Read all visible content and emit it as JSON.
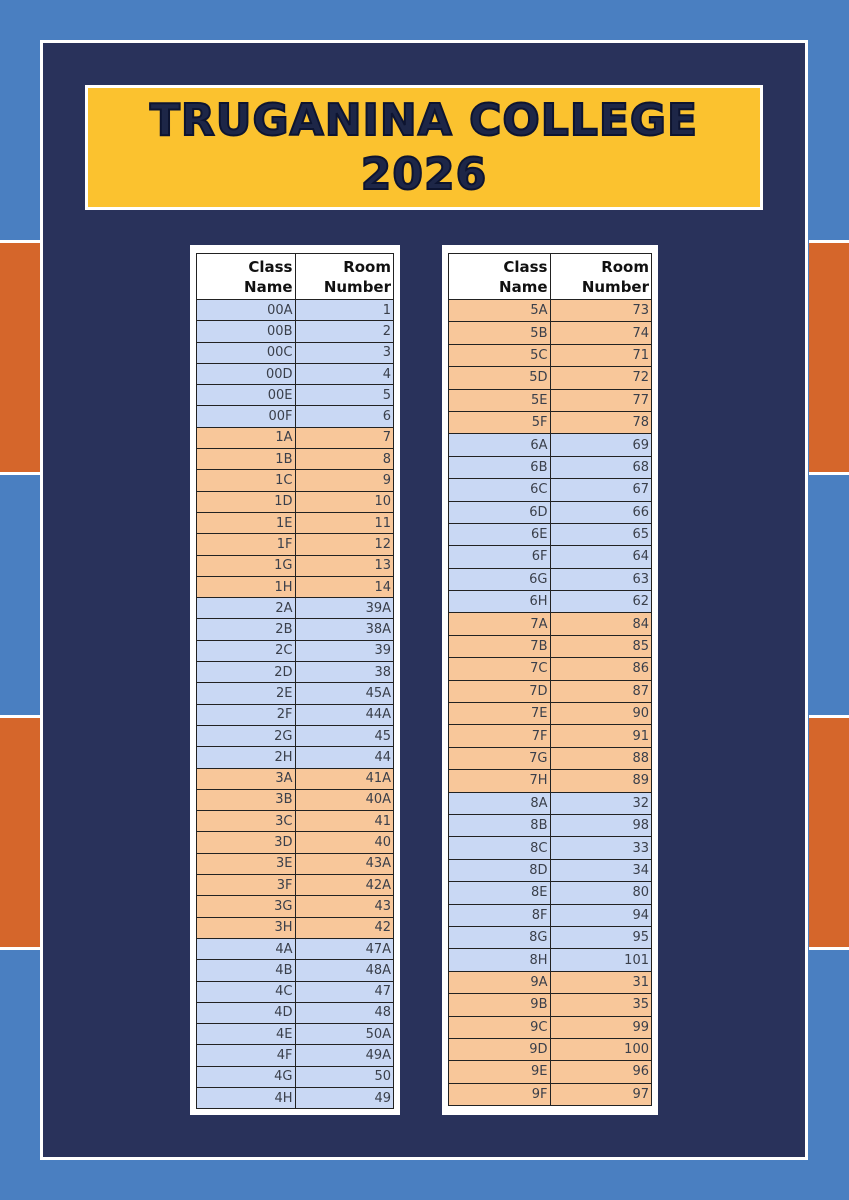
{
  "title": {
    "line1": "TRUGANINA COLLEGE",
    "line2": "2026"
  },
  "colors": {
    "background_blue": "#4a7fc1",
    "band_orange": "#d5662b",
    "frame_navy": "#29325b",
    "title_yellow": "#fbc22f",
    "row_blue": "#c9d8f4",
    "row_orange": "#f8c79a"
  },
  "tables": [
    {
      "headers": {
        "class": "Class Name",
        "room": "Room Number"
      },
      "rows": [
        [
          "00A",
          "1",
          "blue"
        ],
        [
          "00B",
          "2",
          "blue"
        ],
        [
          "00C",
          "3",
          "blue"
        ],
        [
          "00D",
          "4",
          "blue"
        ],
        [
          "00E",
          "5",
          "blue"
        ],
        [
          "00F",
          "6",
          "blue"
        ],
        [
          "1A",
          "7",
          "orange"
        ],
        [
          "1B",
          "8",
          "orange"
        ],
        [
          "1C",
          "9",
          "orange"
        ],
        [
          "1D",
          "10",
          "orange"
        ],
        [
          "1E",
          "11",
          "orange"
        ],
        [
          "1F",
          "12",
          "orange"
        ],
        [
          "1G",
          "13",
          "orange"
        ],
        [
          "1H",
          "14",
          "orange"
        ],
        [
          "2A",
          "39A",
          "blue"
        ],
        [
          "2B",
          "38A",
          "blue"
        ],
        [
          "2C",
          "39",
          "blue"
        ],
        [
          "2D",
          "38",
          "blue"
        ],
        [
          "2E",
          "45A",
          "blue"
        ],
        [
          "2F",
          "44A",
          "blue"
        ],
        [
          "2G",
          "45",
          "blue"
        ],
        [
          "2H",
          "44",
          "blue"
        ],
        [
          "3A",
          "41A",
          "orange"
        ],
        [
          "3B",
          "40A",
          "orange"
        ],
        [
          "3C",
          "41",
          "orange"
        ],
        [
          "3D",
          "40",
          "orange"
        ],
        [
          "3E",
          "43A",
          "orange"
        ],
        [
          "3F",
          "42A",
          "orange"
        ],
        [
          "3G",
          "43",
          "orange"
        ],
        [
          "3H",
          "42",
          "orange"
        ],
        [
          "4A",
          "47A",
          "blue"
        ],
        [
          "4B",
          "48A",
          "blue"
        ],
        [
          "4C",
          "47",
          "blue"
        ],
        [
          "4D",
          "48",
          "blue"
        ],
        [
          "4E",
          "50A",
          "blue"
        ],
        [
          "4F",
          "49A",
          "blue"
        ],
        [
          "4G",
          "50",
          "blue"
        ],
        [
          "4H",
          "49",
          "blue"
        ]
      ]
    },
    {
      "headers": {
        "class": "Class Name",
        "room": "Room Number"
      },
      "rows": [
        [
          "5A",
          "73",
          "orange"
        ],
        [
          "5B",
          "74",
          "orange"
        ],
        [
          "5C",
          "71",
          "orange"
        ],
        [
          "5D",
          "72",
          "orange"
        ],
        [
          "5E",
          "77",
          "orange"
        ],
        [
          "5F",
          "78",
          "orange"
        ],
        [
          "6A",
          "69",
          "blue"
        ],
        [
          "6B",
          "68",
          "blue"
        ],
        [
          "6C",
          "67",
          "blue"
        ],
        [
          "6D",
          "66",
          "blue"
        ],
        [
          "6E",
          "65",
          "blue"
        ],
        [
          "6F",
          "64",
          "blue"
        ],
        [
          "6G",
          "63",
          "blue"
        ],
        [
          "6H",
          "62",
          "blue"
        ],
        [
          "7A",
          "84",
          "orange"
        ],
        [
          "7B",
          "85",
          "orange"
        ],
        [
          "7C",
          "86",
          "orange"
        ],
        [
          "7D",
          "87",
          "orange"
        ],
        [
          "7E",
          "90",
          "orange"
        ],
        [
          "7F",
          "91",
          "orange"
        ],
        [
          "7G",
          "88",
          "orange"
        ],
        [
          "7H",
          "89",
          "orange"
        ],
        [
          "8A",
          "32",
          "blue"
        ],
        [
          "8B",
          "98",
          "blue"
        ],
        [
          "8C",
          "33",
          "blue"
        ],
        [
          "8D",
          "34",
          "blue"
        ],
        [
          "8E",
          "80",
          "blue"
        ],
        [
          "8F",
          "94",
          "blue"
        ],
        [
          "8G",
          "95",
          "blue"
        ],
        [
          "8H",
          "101",
          "blue"
        ],
        [
          "9A",
          "31",
          "orange"
        ],
        [
          "9B",
          "35",
          "orange"
        ],
        [
          "9C",
          "99",
          "orange"
        ],
        [
          "9D",
          "100",
          "orange"
        ],
        [
          "9E",
          "96",
          "orange"
        ],
        [
          "9F",
          "97",
          "orange"
        ]
      ]
    }
  ]
}
